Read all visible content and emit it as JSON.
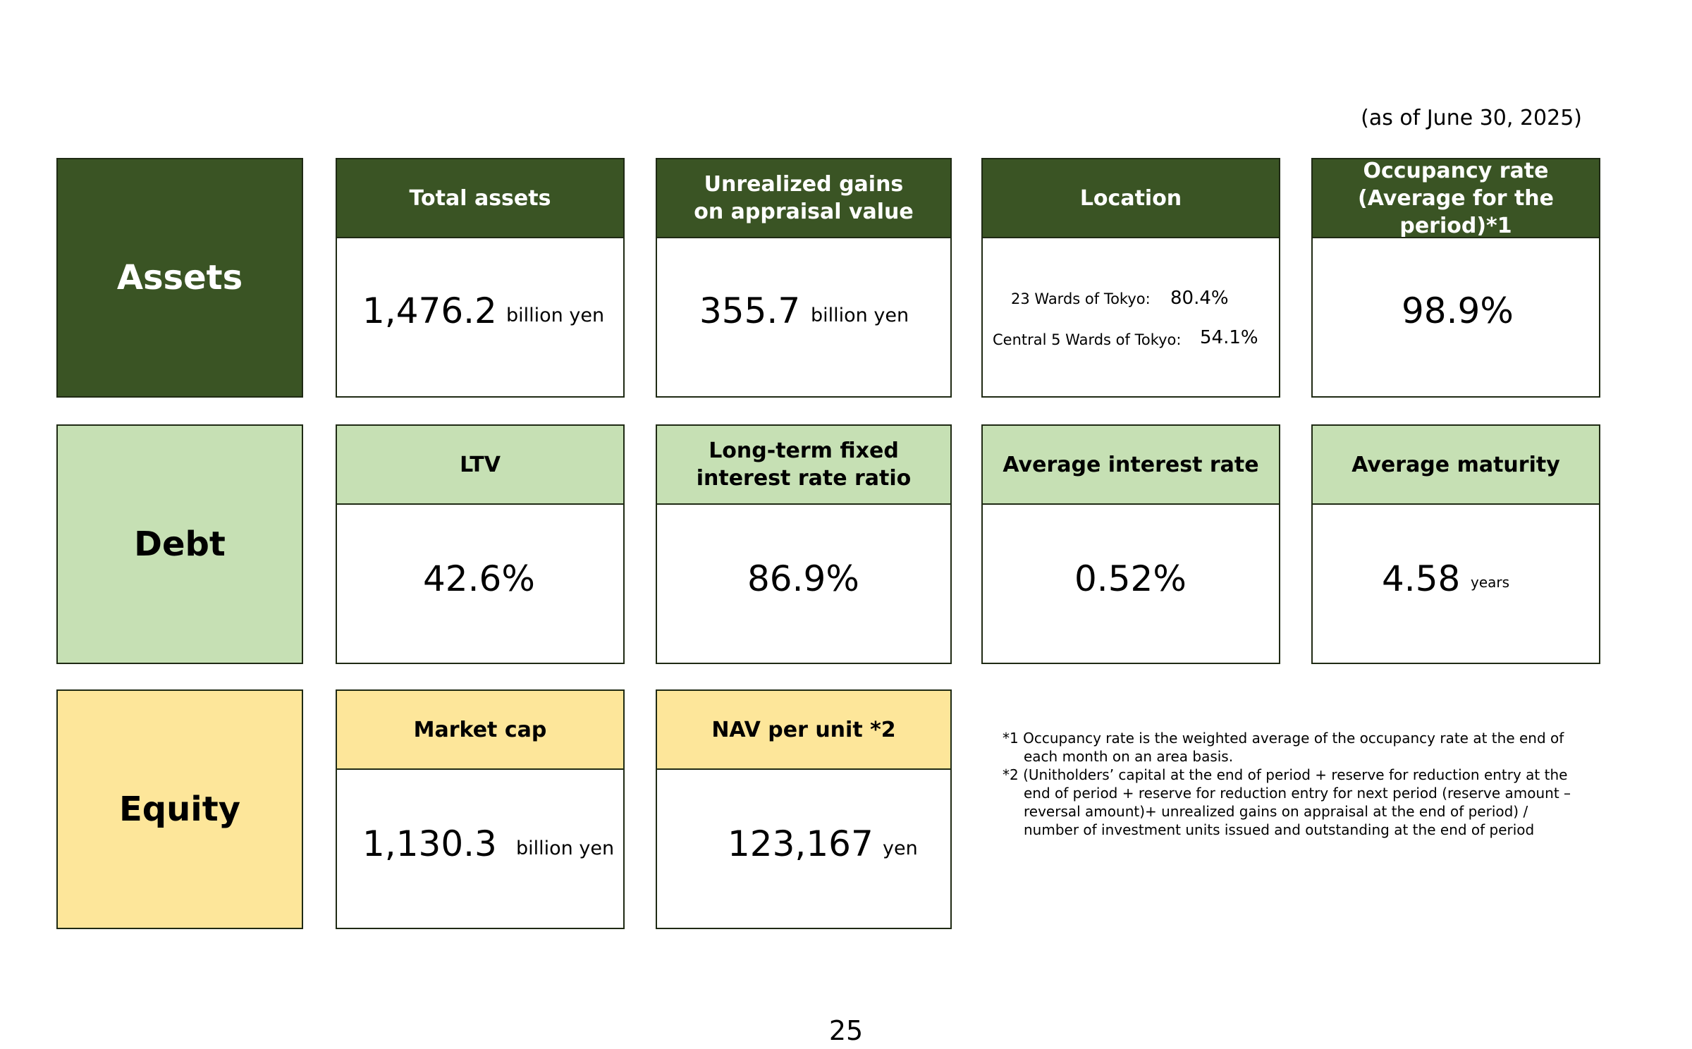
{
  "as_of": "(as of June 30, 2025)",
  "rows": {
    "assets": "Assets",
    "debt": "Debt",
    "equity": "Equity"
  },
  "assets": {
    "total_assets": {
      "title": "Total assets",
      "value": "1,476.2",
      "unit": "billion yen"
    },
    "unrealized_gains": {
      "title": "Unrealized gains\non appraisal value",
      "value": "355.7",
      "unit": "billion yen"
    },
    "location": {
      "title": "Location",
      "wards23_label": "23 Wards of Tokyo:",
      "wards23_value": "80.4%",
      "central5_label": "Central 5 Wards of Tokyo:",
      "central5_value": "54.1%"
    },
    "occupancy": {
      "title": "Occupancy rate\n(Average for the period)*1",
      "value": "98.9%"
    }
  },
  "debt": {
    "ltv": {
      "title": "LTV",
      "value": "42.6%"
    },
    "fixed_rate": {
      "title": "Long-term fixed\ninterest rate ratio",
      "value": "86.9%"
    },
    "avg_interest": {
      "title": "Average interest rate",
      "value": "0.52%"
    },
    "avg_maturity": {
      "title": "Average maturity",
      "value": "4.58",
      "unit": "years"
    }
  },
  "equity": {
    "market_cap": {
      "title": "Market cap",
      "value": "1,130.3",
      "unit": "billion yen"
    },
    "nav_per_unit": {
      "title": "NAV per unit *2",
      "value": "123,167",
      "unit": "yen"
    }
  },
  "notes": {
    "note1": "*1 Occupancy rate is the weighted average of the occupancy rate at the end of each month on an area basis.",
    "note2": "*2 (Unitholders’ capital at the end of period + reserve for reduction entry at the end of period + reserve for reduction entry for next period (reserve amount – reversal amount)+ unrealized gains on appraisal at the end of period) / number of investment units issued and outstanding at the end of period"
  },
  "page_number": "25"
}
